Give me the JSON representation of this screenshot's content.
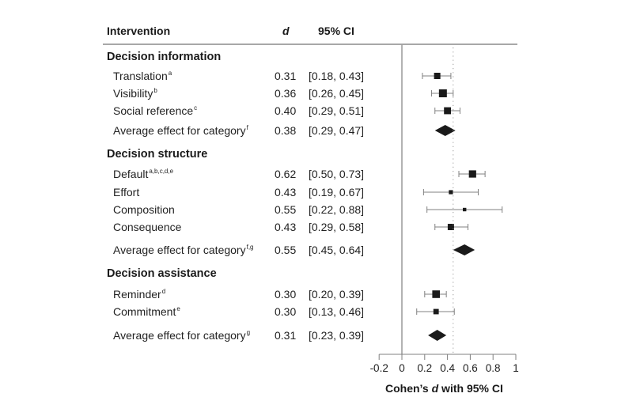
{
  "table_header": {
    "intervention": "Intervention",
    "d": "d",
    "ci": "95% CI"
  },
  "chart_data": {
    "type": "forest",
    "xlabel_prefix": "Cohen’s ",
    "xlabel_var": "d",
    "xlabel_suffix": " with 95% CI",
    "xlim": [
      -0.2,
      1.0
    ],
    "xticks": [
      -0.2,
      0,
      0.2,
      0.4,
      0.6,
      0.8,
      1
    ],
    "xtick_labels": [
      "-0.2",
      "0",
      "0.2",
      "0.4",
      "0.6",
      "0.8",
      "1"
    ],
    "reference_line": 0,
    "overall_mean_line": 0.45,
    "groups": [
      {
        "name": "Decision information",
        "items": [
          {
            "label": "Translation",
            "sup": "a",
            "d": 0.31,
            "d_text": "0.31",
            "lo": 0.18,
            "hi": 0.43,
            "ci_text": "[0.18, 0.43]",
            "weight": 0.75
          },
          {
            "label": "Visibility",
            "sup": "b",
            "d": 0.36,
            "d_text": "0.36",
            "lo": 0.26,
            "hi": 0.45,
            "ci_text": "[0.26, 0.45]",
            "weight": 1.0
          },
          {
            "label": "Social reference",
            "sup": "c",
            "d": 0.4,
            "d_text": "0.40",
            "lo": 0.29,
            "hi": 0.51,
            "ci_text": "[0.29, 0.51]",
            "weight": 0.85
          }
        ],
        "average": {
          "label": "Average effect for category",
          "sup": "f",
          "d": 0.38,
          "d_text": "0.38",
          "lo": 0.29,
          "hi": 0.47,
          "ci_text": "[0.29, 0.47]"
        }
      },
      {
        "name": "Decision structure",
        "items": [
          {
            "label": "Default",
            "sup": "a,b,c,d,e",
            "d": 0.62,
            "d_text": "0.62",
            "lo": 0.5,
            "hi": 0.73,
            "ci_text": "[0.50, 0.73]",
            "weight": 0.9
          },
          {
            "label": "Effort",
            "sup": "",
            "d": 0.43,
            "d_text": "0.43",
            "lo": 0.19,
            "hi": 0.67,
            "ci_text": "[0.19, 0.67]",
            "weight": 0.4
          },
          {
            "label": "Composition",
            "sup": "",
            "d": 0.55,
            "d_text": "0.55",
            "lo": 0.22,
            "hi": 0.88,
            "ci_text": "[0.22, 0.88]",
            "weight": 0.3
          },
          {
            "label": "Consequence",
            "sup": "",
            "d": 0.43,
            "d_text": "0.43",
            "lo": 0.29,
            "hi": 0.58,
            "ci_text": "[0.29, 0.58]",
            "weight": 0.75
          }
        ],
        "average": {
          "label": "Average effect for category",
          "sup": "f,g",
          "d": 0.55,
          "d_text": "0.55",
          "lo": 0.45,
          "hi": 0.64,
          "ci_text": "[0.45, 0.64]"
        }
      },
      {
        "name": "Decision assistance",
        "items": [
          {
            "label": "Reminder",
            "sup": "d",
            "d": 0.3,
            "d_text": "0.30",
            "lo": 0.2,
            "hi": 0.39,
            "ci_text": "[0.20, 0.39]",
            "weight": 0.95
          },
          {
            "label": "Commitment",
            "sup": "e",
            "d": 0.3,
            "d_text": "0.30",
            "lo": 0.13,
            "hi": 0.46,
            "ci_text": "[0.13, 0.46]",
            "weight": 0.6
          }
        ],
        "average": {
          "label": "Average effect for category",
          "sup": "g",
          "d": 0.31,
          "d_text": "0.31",
          "lo": 0.23,
          "hi": 0.39,
          "ci_text": "[0.23, 0.39]"
        }
      }
    ]
  }
}
